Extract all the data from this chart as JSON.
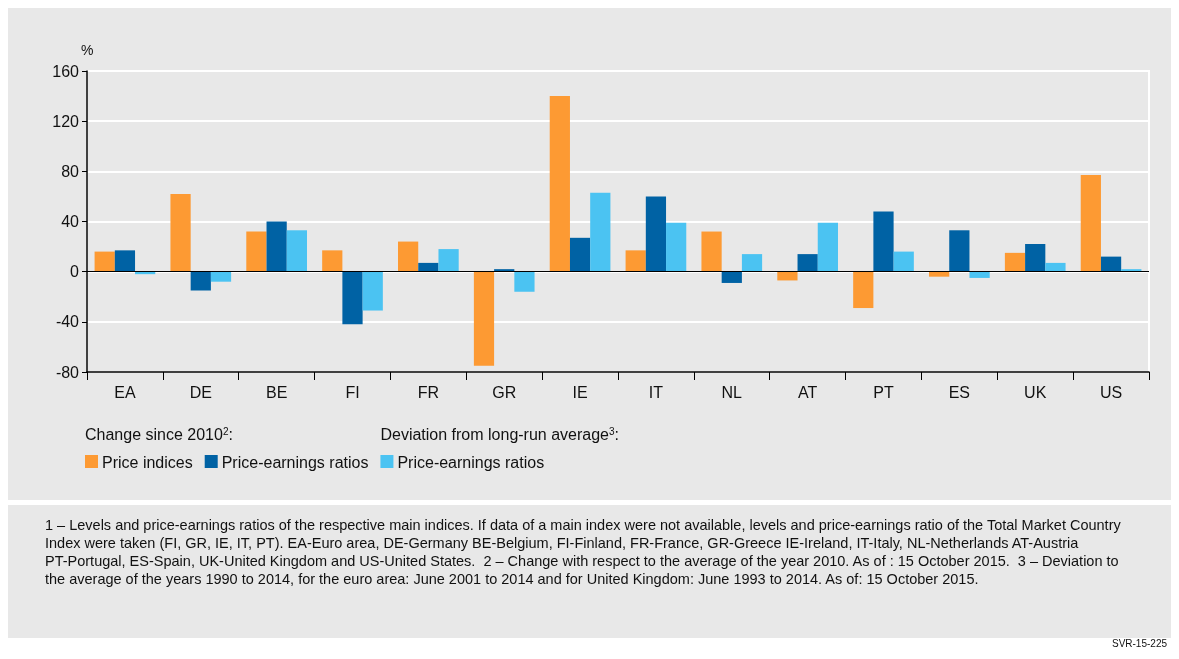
{
  "chart_data": {
    "type": "bar",
    "ylabel": "%",
    "categories": [
      "EA",
      "DE",
      "BE",
      "FI",
      "FR",
      "GR",
      "IE",
      "IT",
      "NL",
      "AT",
      "PT",
      "ES",
      "UK",
      "US"
    ],
    "series": [
      {
        "name": "Price indices",
        "color": "#fd9a33",
        "values": [
          16,
          62,
          32,
          17,
          24,
          -75,
          140,
          17,
          32,
          -7,
          -29,
          -4,
          15,
          77
        ]
      },
      {
        "name": "Price-earnings ratios",
        "color": "#0062a4",
        "values": [
          17,
          -15,
          40,
          -42,
          7,
          2,
          27,
          60,
          -9,
          14,
          48,
          33,
          22,
          12
        ]
      },
      {
        "name": "Price-earnings ratios",
        "color": "#4bc3f2",
        "values": [
          -2,
          -8,
          33,
          -31,
          18,
          -16,
          63,
          39,
          14,
          39,
          16,
          -5,
          7,
          2
        ]
      }
    ],
    "ylim": [
      -80,
      160
    ],
    "yticks": [
      -80,
      -40,
      0,
      40,
      80,
      120,
      160
    ],
    "grid": "y",
    "legend": "bottom",
    "ref_lines": [
      {
        "axis": "y",
        "value": 0,
        "label": null,
        "color": "#000000"
      }
    ],
    "annotations": [
      "Change since 2010$^{2}$:",
      "Deviation from long-run average$^{3}$:",
      "1 – Levels and price-earnings ratios of the respective main indices. If data of a main index were not available, levels and price-earnings ratio of the Total Market Country Index were taken (FI, GR, IE, IT, PT). EA-Euro area, DE-Germany BE-Belgium, FI-Finland, FR-France, GR-Greece IE-Ireland, IT-Italy, NL-Netherlands AT-Austria PT-Portugal, ES-Spain, UK-United Kingdom and US-United States.  2 – Change with respect to the average of the year 2010. As of : 15 October 2015.  3 – Deviation to the average of the years 1990 to 2014, for the euro area: June 2001 to 2014 and for United Kingdom: June 1993 to 2014. As of: 15 October 2015.",
      "SVR-15-225"
    ]
  }
}
